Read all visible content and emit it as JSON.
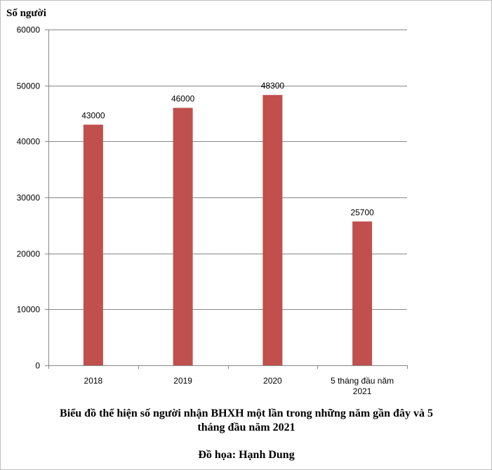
{
  "chart_data": {
    "type": "bar",
    "ylabel": "Số người",
    "xlabel": "",
    "categories": [
      "2018",
      "2019",
      "2020",
      "5 tháng đầu năm 2021"
    ],
    "category_lines": [
      [
        "2018"
      ],
      [
        "2019"
      ],
      [
        "2020"
      ],
      [
        "5 tháng đầu năm",
        "2021"
      ]
    ],
    "values": [
      43000,
      46000,
      48300,
      25700
    ],
    "data_labels": [
      "43000",
      "46000",
      "48300",
      "25700"
    ],
    "ylim": [
      0,
      60000
    ],
    "yticks": [
      0,
      10000,
      20000,
      30000,
      40000,
      50000,
      60000
    ],
    "grid": true,
    "bar_color": "#c0504d",
    "legend": "none"
  },
  "caption": {
    "line1": "Biểu đồ thể hiện số người nhận BHXH  một lần trong những  năm gần đây và 5",
    "line2": "tháng đầu năm 2021",
    "credit": "Đồ họa: Hạnh Dung"
  }
}
